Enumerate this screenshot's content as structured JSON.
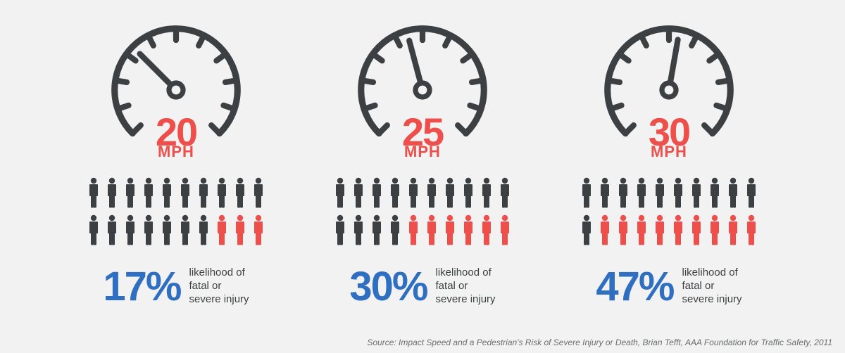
{
  "colors": {
    "background": "#f2f2f2",
    "dark": "#3d4042",
    "accent_red": "#ee4f4a",
    "accent_blue": "#2f6fc1",
    "text_gray": "#3d4042",
    "source_gray": "#6a6d6f"
  },
  "gauge": {
    "arc_start_deg": 135,
    "arc_end_deg": 405,
    "stroke_width": 10,
    "tick_count": 11,
    "tick_len": 18,
    "tick_width": 9,
    "radius": 96,
    "hub_radius": 11,
    "needle_len": 80,
    "needle_width": 9
  },
  "people_icon": {
    "width": 22,
    "height": 44
  },
  "panels": [
    {
      "speed_value": "20",
      "speed_unit": "MPH",
      "needle_angle_deg": 225,
      "rows": [
        [
          "dark",
          "dark",
          "dark",
          "dark",
          "dark",
          "dark",
          "dark",
          "dark",
          "dark",
          "dark"
        ],
        [
          "dark",
          "dark",
          "dark",
          "dark",
          "dark",
          "dark",
          "dark",
          "accent_red",
          "accent_red",
          "accent_red"
        ]
      ],
      "percent": "17%",
      "percent_label": "likelihood of\nfatal or\nsevere injury"
    },
    {
      "speed_value": "25",
      "speed_unit": "MPH",
      "needle_angle_deg": 255,
      "rows": [
        [
          "dark",
          "dark",
          "dark",
          "dark",
          "dark",
          "dark",
          "dark",
          "dark",
          "dark",
          "dark"
        ],
        [
          "dark",
          "dark",
          "dark",
          "dark",
          "accent_red",
          "accent_red",
          "accent_red",
          "accent_red",
          "accent_red",
          "accent_red"
        ]
      ],
      "percent": "30%",
      "percent_label": "likelihood of\nfatal or\nsevere injury"
    },
    {
      "speed_value": "30",
      "speed_unit": "MPH",
      "needle_angle_deg": 280,
      "rows": [
        [
          "dark",
          "dark",
          "dark",
          "dark",
          "dark",
          "dark",
          "dark",
          "dark",
          "dark",
          "dark"
        ],
        [
          "dark",
          "accent_red",
          "accent_red",
          "accent_red",
          "accent_red",
          "accent_red",
          "accent_red",
          "accent_red",
          "accent_red",
          "accent_red"
        ]
      ],
      "percent": "47%",
      "percent_label": "likelihood of\nfatal or\nsevere injury"
    }
  ],
  "source_text": "Source: Impact Speed and a Pedestrian's Risk of Severe Injury or Death, Brian Tefft, AAA Foundation for Traffic Safety, 2011"
}
